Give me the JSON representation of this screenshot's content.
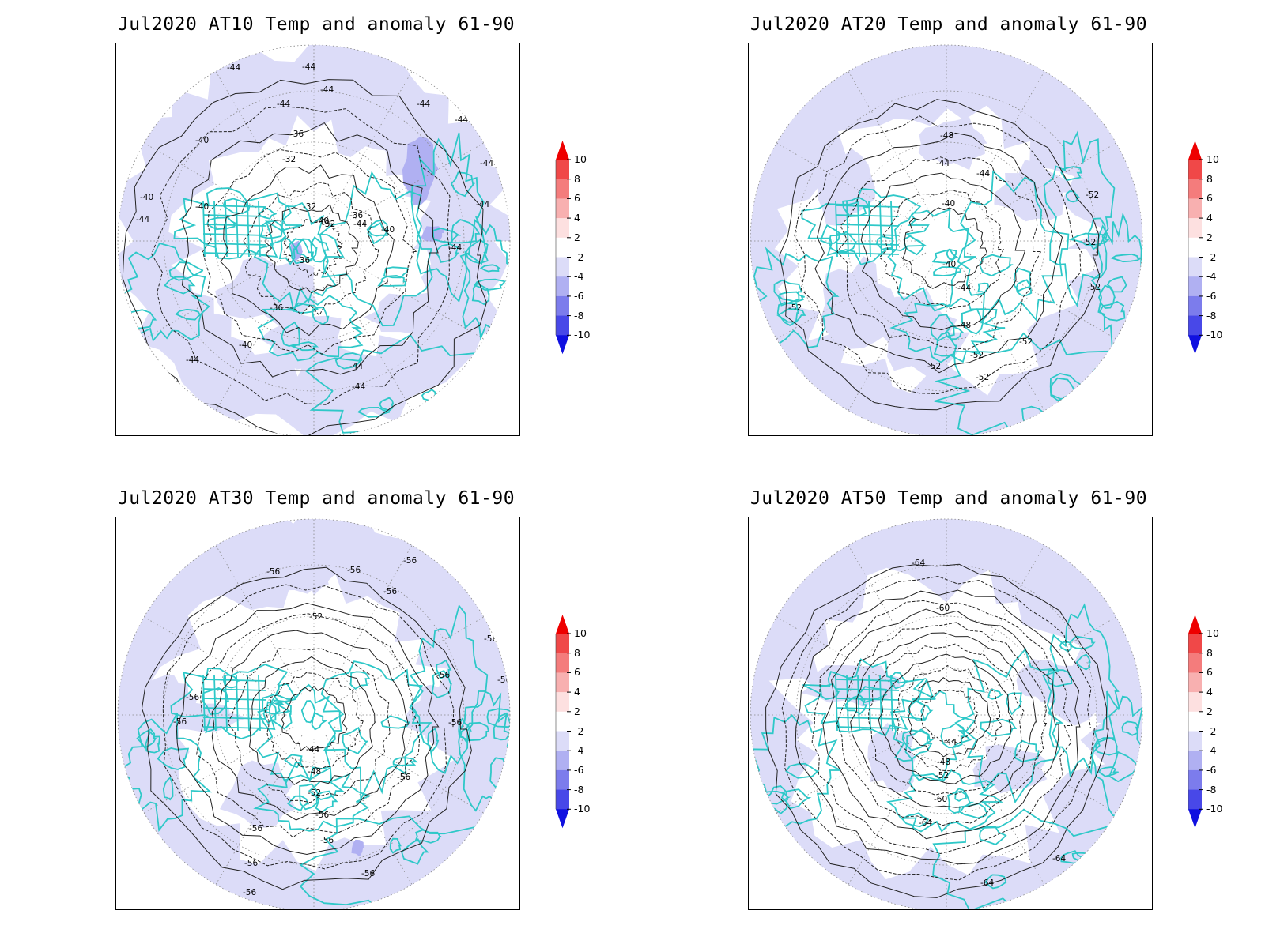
{
  "panels": [
    {
      "title": "Jul2020 AT10 Temp and anomaly 61-90",
      "contour_labels": [
        "-44",
        "-44",
        "-44",
        "-44",
        "-44",
        "-44",
        "-44",
        "-44",
        "-40",
        "-36",
        "-32",
        "-32",
        "-32",
        "-36",
        "-36",
        "-36",
        "-40",
        "-40",
        "-40",
        "-40",
        "-44",
        "-44",
        "-44",
        "-44",
        "-44",
        "-44",
        "-40",
        "-44",
        "-44"
      ]
    },
    {
      "title": "Jul2020 AT20 Temp and anomaly 61-90",
      "contour_labels": [
        "-48",
        "-44",
        "-44",
        "-40",
        "-40",
        "-44",
        "-48",
        "-52",
        "-52",
        "-52",
        "-52",
        "-52",
        "-52",
        "-52",
        "-52"
      ]
    },
    {
      "title": "Jul2020 AT30 Temp and anomaly 61-90",
      "contour_labels": [
        "-56",
        "-56",
        "-56",
        "-56",
        "-52",
        "-56",
        "-56",
        "-56",
        "-56",
        "-56",
        "-56",
        "-44",
        "-48",
        "-52",
        "-56",
        "-56",
        "-56",
        "-56",
        "-56",
        "-56",
        "-56",
        "-56"
      ]
    },
    {
      "title": "Jul2020 AT50 Temp and anomaly 61-90",
      "contour_labels": [
        "-64",
        "-60",
        "-64",
        "-44",
        "-48",
        "-52",
        "-60",
        "-64",
        "-64",
        "-64"
      ]
    }
  ],
  "colorbar": {
    "ticks": [
      "10",
      "8",
      "6",
      "4",
      "2",
      "-2",
      "-4",
      "-6",
      "-8",
      "-10"
    ],
    "colors": [
      "#ee0000",
      "#f04848",
      "#f47c7c",
      "#f8b0b0",
      "#fde0e0",
      "#ffffff",
      "#dcdcf8",
      "#b0b0f2",
      "#7c7cec",
      "#4848e8",
      "#1818e0"
    ],
    "arrow_top_color": "#ee0000",
    "arrow_bottom_color": "#1010e0"
  },
  "colors": {
    "coastline": "#2ec8c8",
    "anomaly_light": "#dcdcf8",
    "anomaly_medium": "#b0b0f2",
    "contour": "#222222",
    "grid": "#888888"
  }
}
